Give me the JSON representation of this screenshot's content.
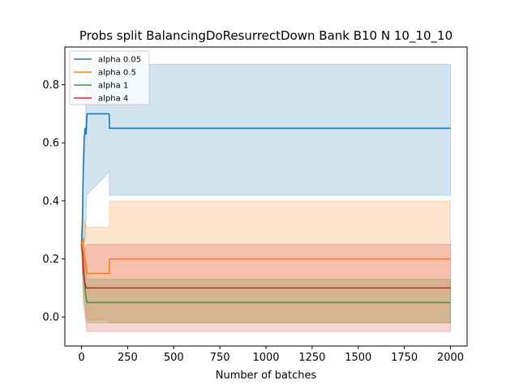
{
  "chart_data": {
    "type": "line",
    "title": "Probs split BalancingDoResurrectDown Bank B10 N 10_10_10",
    "xlabel": "Number of batches",
    "ylabel": "",
    "xlim": [
      -90,
      2090
    ],
    "ylim": [
      -0.1,
      0.93
    ],
    "xticks": [
      0,
      250,
      500,
      750,
      1000,
      1250,
      1500,
      1750,
      2000
    ],
    "yticks": [
      0.0,
      0.2,
      0.4,
      0.6,
      0.8
    ],
    "ytick_labels": [
      "0.0",
      "0.2",
      "0.4",
      "0.6",
      "0.8"
    ],
    "grid": false,
    "legend_position": "top-left",
    "series": [
      {
        "name": "alpha 0.05",
        "color": "#1f77b4",
        "points": [
          [
            0,
            0.25
          ],
          [
            5,
            0.33
          ],
          [
            10,
            0.52
          ],
          [
            15,
            0.62
          ],
          [
            20,
            0.65
          ],
          [
            25,
            0.63
          ],
          [
            30,
            0.7
          ],
          [
            150,
            0.7
          ],
          [
            152,
            0.65
          ],
          [
            2000,
            0.65
          ]
        ],
        "band": [
          [
            0,
            0.25,
            0.25
          ],
          [
            10,
            0.25,
            0.5
          ],
          [
            20,
            0.27,
            0.6
          ],
          [
            28,
            0.42,
            0.87
          ],
          [
            150,
            0.5,
            0.87
          ],
          [
            152,
            0.42,
            0.87
          ],
          [
            2000,
            0.42,
            0.87
          ]
        ]
      },
      {
        "name": "alpha 0.5",
        "color": "#ff7f0e",
        "points": [
          [
            0,
            0.25
          ],
          [
            10,
            0.27
          ],
          [
            15,
            0.22
          ],
          [
            20,
            0.2
          ],
          [
            30,
            0.15
          ],
          [
            150,
            0.15
          ],
          [
            152,
            0.2
          ],
          [
            2000,
            0.2
          ]
        ],
        "band": [
          [
            0,
            0.25,
            0.25
          ],
          [
            10,
            0.15,
            0.33
          ],
          [
            30,
            -0.01,
            0.31
          ],
          [
            150,
            -0.01,
            0.31
          ],
          [
            152,
            -0.02,
            0.4
          ],
          [
            2000,
            -0.02,
            0.4
          ]
        ]
      },
      {
        "name": "alpha 1",
        "color": "#2ca02c",
        "points": [
          [
            0,
            0.25
          ],
          [
            8,
            0.2
          ],
          [
            15,
            0.13
          ],
          [
            22,
            0.08
          ],
          [
            30,
            0.05
          ],
          [
            2000,
            0.05
          ]
        ],
        "band": [
          [
            0,
            0.25,
            0.25
          ],
          [
            10,
            0.08,
            0.22
          ],
          [
            30,
            -0.02,
            0.13
          ],
          [
            2000,
            -0.02,
            0.13
          ]
        ]
      },
      {
        "name": "alpha 4",
        "color": "#d62728",
        "points": [
          [
            0,
            0.25
          ],
          [
            6,
            0.22
          ],
          [
            12,
            0.15
          ],
          [
            18,
            0.12
          ],
          [
            25,
            0.1
          ],
          [
            2000,
            0.1
          ]
        ],
        "band": [
          [
            0,
            0.25,
            0.25
          ],
          [
            10,
            0.05,
            0.22
          ],
          [
            30,
            -0.05,
            0.25
          ],
          [
            2000,
            -0.05,
            0.25
          ]
        ]
      }
    ]
  }
}
